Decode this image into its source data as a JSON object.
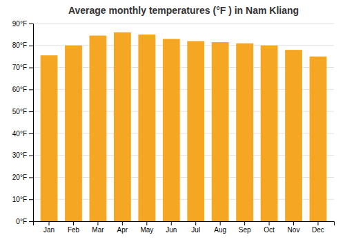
{
  "chart_data": {
    "type": "bar",
    "title": "Average monthly temperatures (°F ) in Nam Kliang",
    "categories": [
      "Jan",
      "Feb",
      "Mar",
      "Apr",
      "May",
      "Jun",
      "Jul",
      "Aug",
      "Sep",
      "Oct",
      "Nov",
      "Dec"
    ],
    "values": [
      75.5,
      80.0,
      84.5,
      86.0,
      85.0,
      83.0,
      82.0,
      81.5,
      81.0,
      80.0,
      78.0,
      75.0
    ],
    "color": "#F5A623",
    "ylim": [
      0,
      90
    ],
    "yticks": [
      {
        "value": 0,
        "label": "0°F"
      },
      {
        "value": 10,
        "label": "10°F"
      },
      {
        "value": 20,
        "label": "20°F"
      },
      {
        "value": 30,
        "label": "30°F"
      },
      {
        "value": 40,
        "label": "40°F"
      },
      {
        "value": 50,
        "label": "50°F"
      },
      {
        "value": 60,
        "label": "60°F"
      },
      {
        "value": 70,
        "label": "70°F"
      },
      {
        "value": 80,
        "label": "80°F"
      },
      {
        "value": 90,
        "label": "90°F"
      }
    ],
    "grid": true
  }
}
